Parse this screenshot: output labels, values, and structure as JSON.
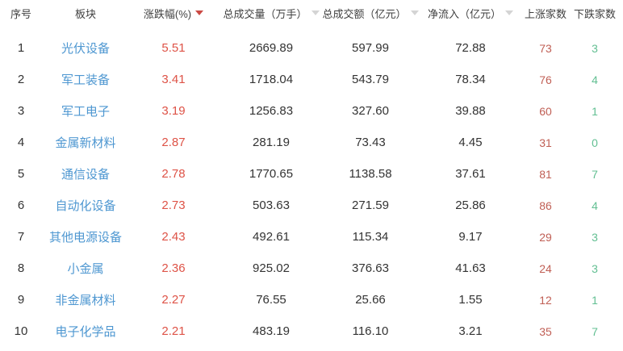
{
  "table": {
    "colors": {
      "sector_link": "#4e97d1",
      "change_up_text": "#de5347",
      "up_count_text": "#c05f55",
      "down_count_text": "#62bf92",
      "sort_active": "#cb4a44",
      "sort_idle": "#d4d4d4",
      "header_text": "#3f3f3f",
      "body_text": "#333333",
      "background": "#ffffff"
    },
    "columns": [
      {
        "key": "index",
        "label": "序号",
        "sort": "none"
      },
      {
        "key": "sector",
        "label": "板块",
        "sort": "none"
      },
      {
        "key": "change_pct",
        "label": "涨跌幅(%)",
        "sort": "desc"
      },
      {
        "key": "volume",
        "label": "总成交量（万手）",
        "sort": "sortable"
      },
      {
        "key": "turnover",
        "label": "总成交额（亿元）",
        "sort": "sortable"
      },
      {
        "key": "net_inflow",
        "label": "净流入（亿元）",
        "sort": "sortable"
      },
      {
        "key": "up_count",
        "label": "上涨家数",
        "sort": "none"
      },
      {
        "key": "down_count",
        "label": "下跌家数",
        "sort": "none"
      }
    ],
    "rows": [
      {
        "index": "1",
        "sector": "光伏设备",
        "change_pct": "5.51",
        "volume": "2669.89",
        "turnover": "597.99",
        "net_inflow": "72.88",
        "up_count": "73",
        "down_count": "3"
      },
      {
        "index": "2",
        "sector": "军工装备",
        "change_pct": "3.41",
        "volume": "1718.04",
        "turnover": "543.79",
        "net_inflow": "78.34",
        "up_count": "76",
        "down_count": "4"
      },
      {
        "index": "3",
        "sector": "军工电子",
        "change_pct": "3.19",
        "volume": "1256.83",
        "turnover": "327.60",
        "net_inflow": "39.88",
        "up_count": "60",
        "down_count": "1"
      },
      {
        "index": "4",
        "sector": "金属新材料",
        "change_pct": "2.87",
        "volume": "281.19",
        "turnover": "73.43",
        "net_inflow": "4.45",
        "up_count": "31",
        "down_count": "0"
      },
      {
        "index": "5",
        "sector": "通信设备",
        "change_pct": "2.78",
        "volume": "1770.65",
        "turnover": "1138.58",
        "net_inflow": "37.61",
        "up_count": "81",
        "down_count": "7"
      },
      {
        "index": "6",
        "sector": "自动化设备",
        "change_pct": "2.73",
        "volume": "503.63",
        "turnover": "271.59",
        "net_inflow": "25.86",
        "up_count": "86",
        "down_count": "4"
      },
      {
        "index": "7",
        "sector": "其他电源设备",
        "change_pct": "2.43",
        "volume": "492.61",
        "turnover": "115.34",
        "net_inflow": "9.17",
        "up_count": "29",
        "down_count": "3"
      },
      {
        "index": "8",
        "sector": "小金属",
        "change_pct": "2.36",
        "volume": "925.02",
        "turnover": "376.63",
        "net_inflow": "41.63",
        "up_count": "24",
        "down_count": "3"
      },
      {
        "index": "9",
        "sector": "非金属材料",
        "change_pct": "2.27",
        "volume": "76.55",
        "turnover": "25.66",
        "net_inflow": "1.55",
        "up_count": "12",
        "down_count": "1"
      },
      {
        "index": "10",
        "sector": "电子化学品",
        "change_pct": "2.21",
        "volume": "483.19",
        "turnover": "116.10",
        "net_inflow": "3.21",
        "up_count": "35",
        "down_count": "7"
      }
    ]
  }
}
